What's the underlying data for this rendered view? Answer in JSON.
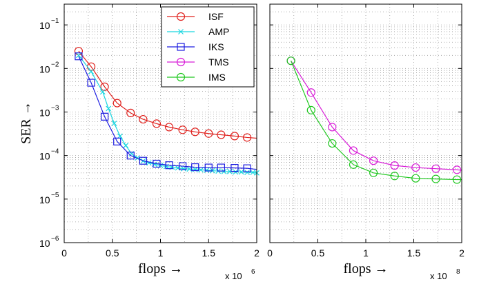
{
  "chart_data": {
    "type": "line",
    "ylabel": "SER  →",
    "y_scale": "log",
    "ylim": [
      1e-06,
      0.3
    ],
    "y_ticks": [
      {
        "value": 1e-06,
        "base": "10",
        "exp": "−6"
      },
      {
        "value": 1e-05,
        "base": "10",
        "exp": "−5"
      },
      {
        "value": 0.0001,
        "base": "10",
        "exp": "−4"
      },
      {
        "value": 0.001,
        "base": "10",
        "exp": "−3"
      },
      {
        "value": 0.01,
        "base": "10",
        "exp": "−2"
      },
      {
        "value": 0.1,
        "base": "10",
        "exp": "−1"
      }
    ],
    "grid": true,
    "legend": {
      "placement": "top-right of left panel",
      "entries": [
        {
          "name": "ISF",
          "color": "#e0201c",
          "marker": "circle"
        },
        {
          "name": "AMP",
          "color": "#19d6e0",
          "marker": "x"
        },
        {
          "name": "IKS",
          "color": "#1c1ce0",
          "marker": "square"
        },
        {
          "name": "TMS",
          "color": "#d81cd8",
          "marker": "circle"
        },
        {
          "name": "IMS",
          "color": "#20c820",
          "marker": "circle"
        }
      ]
    },
    "panels": [
      {
        "xlabel": "flops  →",
        "x_multiplier": {
          "base": "x 10",
          "exp": "6"
        },
        "xlim": [
          0,
          2
        ],
        "x_ticks": [
          "0",
          "0.5",
          "1",
          "1.5",
          "2"
        ],
        "series": [
          {
            "name": "ISF",
            "color": "#e0201c",
            "marker": "circle",
            "x": [
              0.15,
              0.28,
              0.42,
              0.55,
              0.69,
              0.82,
              0.96,
              1.09,
              1.23,
              1.36,
              1.5,
              1.63,
              1.77,
              1.9
            ],
            "y": [
              0.025,
              0.011,
              0.0038,
              0.0016,
              0.00095,
              0.00068,
              0.00054,
              0.00045,
              0.00039,
              0.00035,
              0.00032,
              0.0003,
              0.00028,
              0.00026
            ],
            "curve_end": [
              2.0,
              0.00025
            ]
          },
          {
            "name": "AMP",
            "color": "#19d6e0",
            "marker": "x",
            "x": [
              0.15,
              0.28,
              0.4,
              0.46,
              0.52,
              0.58,
              0.64,
              0.7,
              0.76,
              0.82,
              0.88,
              0.94,
              1.0,
              1.06,
              1.12,
              1.18,
              1.24,
              1.3,
              1.36,
              1.42,
              1.48,
              1.54,
              1.6,
              1.66,
              1.72,
              1.78,
              1.84,
              1.9,
              1.96,
              2.0
            ],
            "y": [
              0.02,
              0.0085,
              0.0029,
              0.0012,
              0.00055,
              0.00028,
              0.00017,
              0.00011,
              8.8e-05,
              7.5e-05,
              6.8e-05,
              6.3e-05,
              5.9e-05,
              5.6e-05,
              5.4e-05,
              5.2e-05,
              5e-05,
              4.9e-05,
              4.8e-05,
              4.7e-05,
              4.6e-05,
              4.5e-05,
              4.4e-05,
              4.3e-05,
              4.3e-05,
              4.2e-05,
              4.2e-05,
              4.1e-05,
              4.1e-05,
              4e-05
            ]
          },
          {
            "name": "IKS",
            "color": "#1c1ce0",
            "marker": "square",
            "x": [
              0.15,
              0.28,
              0.42,
              0.55,
              0.69,
              0.82,
              0.96,
              1.09,
              1.23,
              1.36,
              1.5,
              1.63,
              1.77,
              1.9
            ],
            "y": [
              0.019,
              0.0047,
              0.00078,
              0.00021,
              0.0001,
              7.6e-05,
              6.5e-05,
              6e-05,
              5.7e-05,
              5.4e-05,
              5.3e-05,
              5.3e-05,
              5.2e-05,
              5.1e-05
            ],
            "curve_end": [
              2.0,
              4.8e-05
            ]
          }
        ]
      },
      {
        "xlabel": "flops  →",
        "x_multiplier": {
          "base": "x 10",
          "exp": "8"
        },
        "xlim": [
          0,
          2
        ],
        "x_ticks": [
          "0",
          "0.5",
          "1",
          "1.5",
          "2"
        ],
        "series": [
          {
            "name": "TMS",
            "color": "#d81cd8",
            "marker": "circle",
            "x": [
              0.22,
              0.43,
              0.65,
              0.87,
              1.08,
              1.3,
              1.52,
              1.73,
              1.95
            ],
            "y": [
              0.015,
              0.0028,
              0.00045,
              0.00013,
              7.6e-05,
              5.9e-05,
              5.3e-05,
              5e-05,
              4.7e-05
            ],
            "curve_end": [
              2.0,
              4.6e-05
            ]
          },
          {
            "name": "IMS",
            "color": "#20c820",
            "marker": "circle",
            "x": [
              0.22,
              0.43,
              0.65,
              0.87,
              1.08,
              1.3,
              1.52,
              1.73,
              1.95
            ],
            "y": [
              0.015,
              0.0011,
              0.00019,
              6.2e-05,
              4e-05,
              3.4e-05,
              3e-05,
              2.9e-05,
              2.8e-05
            ],
            "curve_end": [
              2.0,
              2.8e-05
            ]
          }
        ]
      }
    ]
  }
}
